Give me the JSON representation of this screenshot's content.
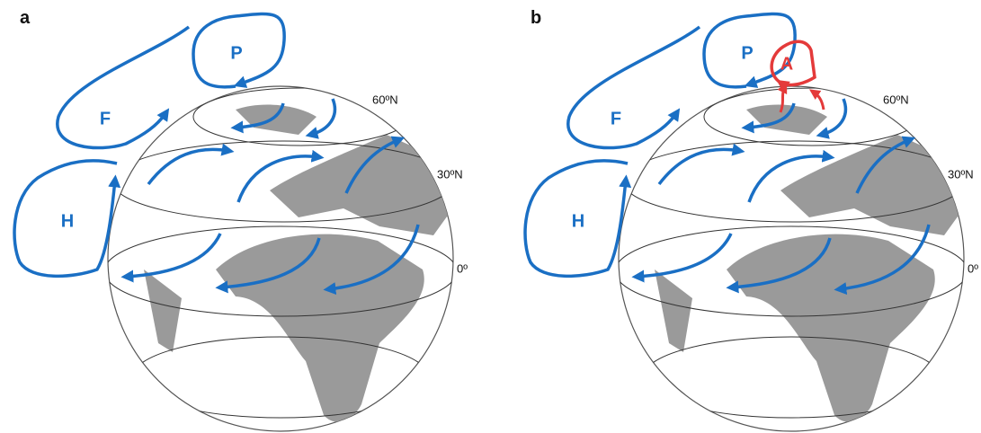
{
  "panels": [
    {
      "label": "a",
      "cells": [
        "F",
        "P",
        "H"
      ],
      "latitudes": [
        "60ºN",
        "30ºN",
        "0º"
      ]
    },
    {
      "label": "b",
      "cells": [
        "F",
        "P",
        "H",
        "A"
      ],
      "latitudes": [
        "60ºN",
        "30ºN",
        "0º"
      ]
    }
  ]
}
